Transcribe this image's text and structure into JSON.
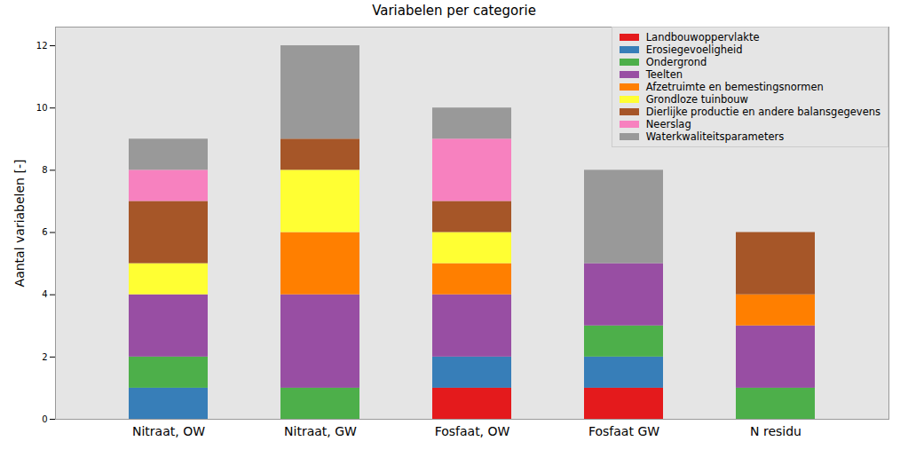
{
  "chart_data": {
    "type": "bar",
    "title": "Variabelen per categorie",
    "y_label": "Aantal variabelen [-]",
    "categories": [
      "Nitraat, OW",
      "Nitraat, GW",
      "Fosfaat, OW",
      "Fosfaat GW",
      "N residu"
    ],
    "stacked": true,
    "legend": "upper right",
    "grid": false,
    "ylim": [
      0,
      12.6
    ],
    "yticks": [
      0,
      2,
      4,
      6,
      8,
      10,
      12
    ],
    "series": [
      {
        "name": "Landbouwoppervlakte",
        "color": "#e41a1c",
        "values": [
          0,
          0,
          1,
          1,
          0
        ]
      },
      {
        "name": "Erosiegevoeligheid",
        "color": "#377eb8",
        "values": [
          1,
          0,
          1,
          1,
          0
        ]
      },
      {
        "name": "Ondergrond",
        "color": "#4daf4a",
        "values": [
          1,
          1,
          0,
          1,
          1
        ]
      },
      {
        "name": "Teelten",
        "color": "#984ea3",
        "values": [
          2,
          3,
          2,
          2,
          2
        ]
      },
      {
        "name": "Afzetruimte en bemestingsnormen",
        "color": "#ff7f00",
        "values": [
          0,
          2,
          1,
          0,
          1
        ]
      },
      {
        "name": "Grondloze tuinbouw",
        "color": "#ffff33",
        "values": [
          1,
          2,
          1,
          0,
          0
        ]
      },
      {
        "name": "Dierlijke productie en andere balansgegevens",
        "color": "#a65628",
        "values": [
          2,
          1,
          1,
          0,
          2
        ]
      },
      {
        "name": "Neerslag",
        "color": "#f781bf",
        "values": [
          1,
          0,
          2,
          0,
          0
        ]
      },
      {
        "name": "Waterkwaliteitsparameters",
        "color": "#999999",
        "values": [
          1,
          3,
          1,
          3,
          0
        ]
      }
    ]
  }
}
